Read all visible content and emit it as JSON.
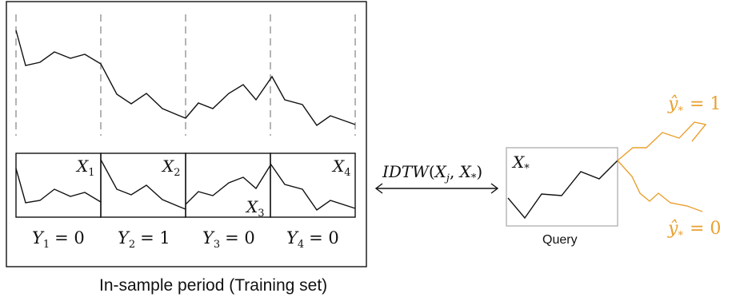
{
  "training_caption": "In-sample period (Training set)",
  "query_caption": "Query",
  "segments": [
    {
      "x_label": "X",
      "x_sub": "1",
      "y_label": "Y",
      "y_sub": "1",
      "y_value": "= 0"
    },
    {
      "x_label": "X",
      "x_sub": "2",
      "y_label": "Y",
      "y_sub": "2",
      "y_value": "= 1"
    },
    {
      "x_label": "X",
      "x_sub": "3",
      "y_label": "Y",
      "y_sub": "3",
      "y_value": "= 0"
    },
    {
      "x_label": "X",
      "x_sub": "4",
      "y_label": "Y",
      "y_sub": "4",
      "y_value": "= 0"
    }
  ],
  "distance": {
    "fn": "IDTW",
    "open": "(",
    "arg1": "X",
    "arg1_sub": "j",
    "sep": ", ",
    "arg2": "X",
    "arg2_sub": "*",
    "close": ")"
  },
  "query": {
    "label": "X",
    "label_sub": "*"
  },
  "predictions": [
    {
      "symbol": "ŷ",
      "sub": "*",
      "value": "= 1"
    },
    {
      "symbol": "ŷ",
      "sub": "*",
      "value": "= 0"
    }
  ],
  "colors": {
    "line": "#111111",
    "divider": "#8c8c8c",
    "query_box": "#b4b4b4",
    "prediction": "#E9A02E"
  }
}
